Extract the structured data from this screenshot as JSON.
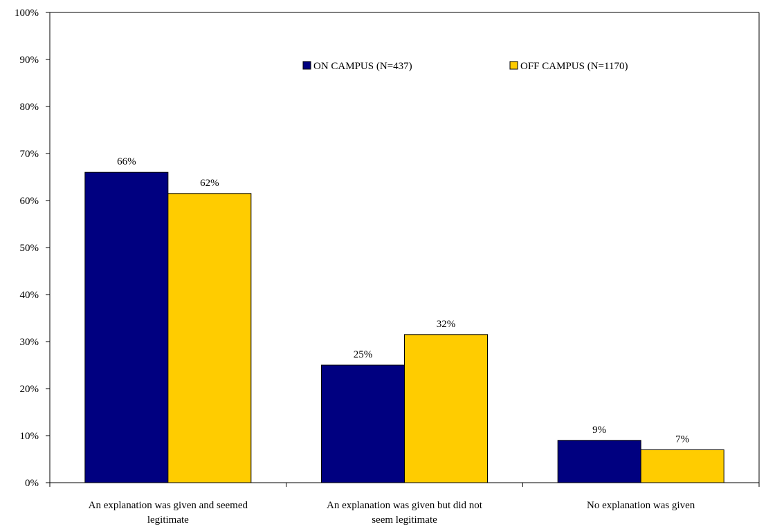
{
  "chart_data": {
    "type": "bar",
    "categories": [
      [
        "An explanation was given and seemed",
        "legitimate"
      ],
      [
        "An explanation was given but did not",
        "seem legitimate"
      ],
      [
        "No explanation was given"
      ]
    ],
    "series": [
      {
        "name": "ON CAMPUS (N=437)",
        "color": "#000080",
        "values": [
          66,
          25,
          9
        ],
        "labels": [
          "66%",
          "25%",
          "9%"
        ]
      },
      {
        "name": "OFF CAMPUS (N=1170)",
        "color": "#FFCC00",
        "values": [
          61.5,
          31.5,
          7
        ],
        "labels": [
          "62%",
          "32%",
          "7%"
        ]
      }
    ],
    "ylim": [
      0,
      100
    ],
    "yticks": [
      0,
      10,
      20,
      30,
      40,
      50,
      60,
      70,
      80,
      90,
      100
    ],
    "ytick_labels": [
      "0%",
      "10%",
      "20%",
      "30%",
      "40%",
      "50%",
      "60%",
      "70%",
      "80%",
      "90%",
      "100%"
    ],
    "grid": false,
    "legend_position": "top-right"
  }
}
